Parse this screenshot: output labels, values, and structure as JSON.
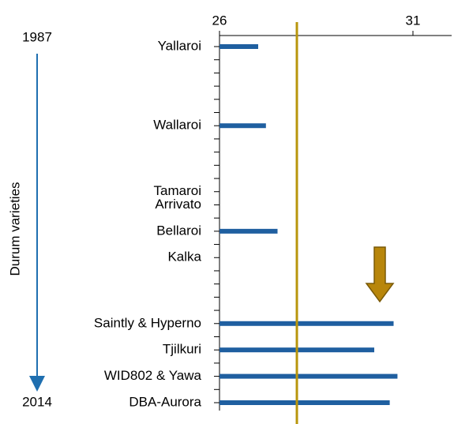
{
  "chart_data": {
    "type": "bar",
    "orientation": "horizontal",
    "ylabel": "Durum varieties",
    "categories": [
      "Yallaroi",
      "Wallaroi",
      "Tamaroi",
      "Arrivato",
      "Bellaroi",
      "Kalka",
      "Saintly & Hyperno",
      "Tjilkuri",
      "WID802 & Yawa",
      "DBA-Aurora"
    ],
    "years": [
      1987,
      1993,
      1998,
      1999,
      2001,
      2003,
      2008,
      2010,
      2012,
      2014
    ],
    "values": [
      27.0,
      27.2,
      null,
      null,
      27.5,
      null,
      30.5,
      30.0,
      30.6,
      30.4
    ],
    "color": "#1f5fa0",
    "xlim": [
      26,
      32
    ],
    "xticks": [
      26,
      31
    ],
    "ylim": [
      1987,
      2014
    ],
    "yticks": [
      1987,
      1988,
      1989,
      1990,
      1991,
      1992,
      1993,
      1994,
      1995,
      1996,
      1997,
      1998,
      1999,
      2000,
      2001,
      2002,
      2003,
      2004,
      2005,
      2006,
      2007,
      2008,
      2009,
      2010,
      2011,
      2012,
      2013,
      2014
    ],
    "reference_line": 28.0,
    "reference_color": "#b8960c"
  }
}
